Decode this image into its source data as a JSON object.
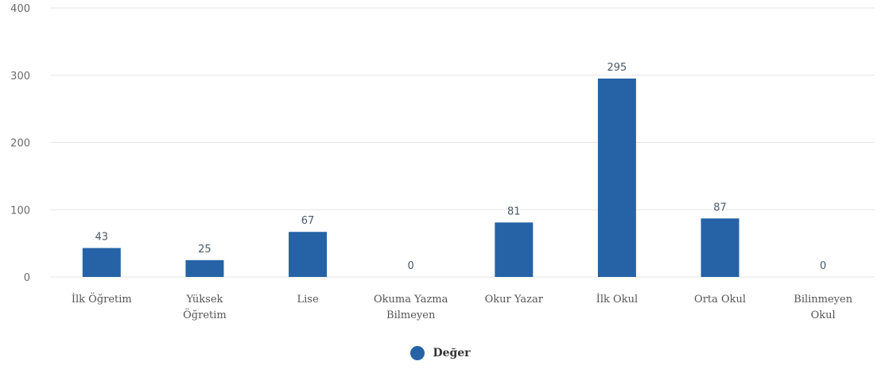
{
  "chart_data": {
    "type": "bar",
    "categories": [
      [
        "İlk Öğretim"
      ],
      [
        "Yüksek",
        "Öğretim"
      ],
      [
        "Lise"
      ],
      [
        "Okuma Yazma",
        "Bilmeyen"
      ],
      [
        "Okur Yazar"
      ],
      [
        "İlk Okul"
      ],
      [
        "Orta Okul"
      ],
      [
        "Bilinmeyen",
        "Okul"
      ]
    ],
    "series": [
      {
        "name": "Değer",
        "values": [
          43,
          25,
          67,
          0,
          81,
          295,
          87,
          0
        ]
      }
    ],
    "data_labels": [
      "43",
      "25",
      "67",
      "0",
      "81",
      "295",
      "87",
      "0"
    ],
    "y_ticks": [
      0,
      100,
      200,
      300,
      400
    ],
    "ylim": [
      0,
      400
    ],
    "grid": true,
    "legend_position": "bottom-center",
    "bar_color": "#2563a6",
    "grid_color": "#e6e6e6"
  }
}
